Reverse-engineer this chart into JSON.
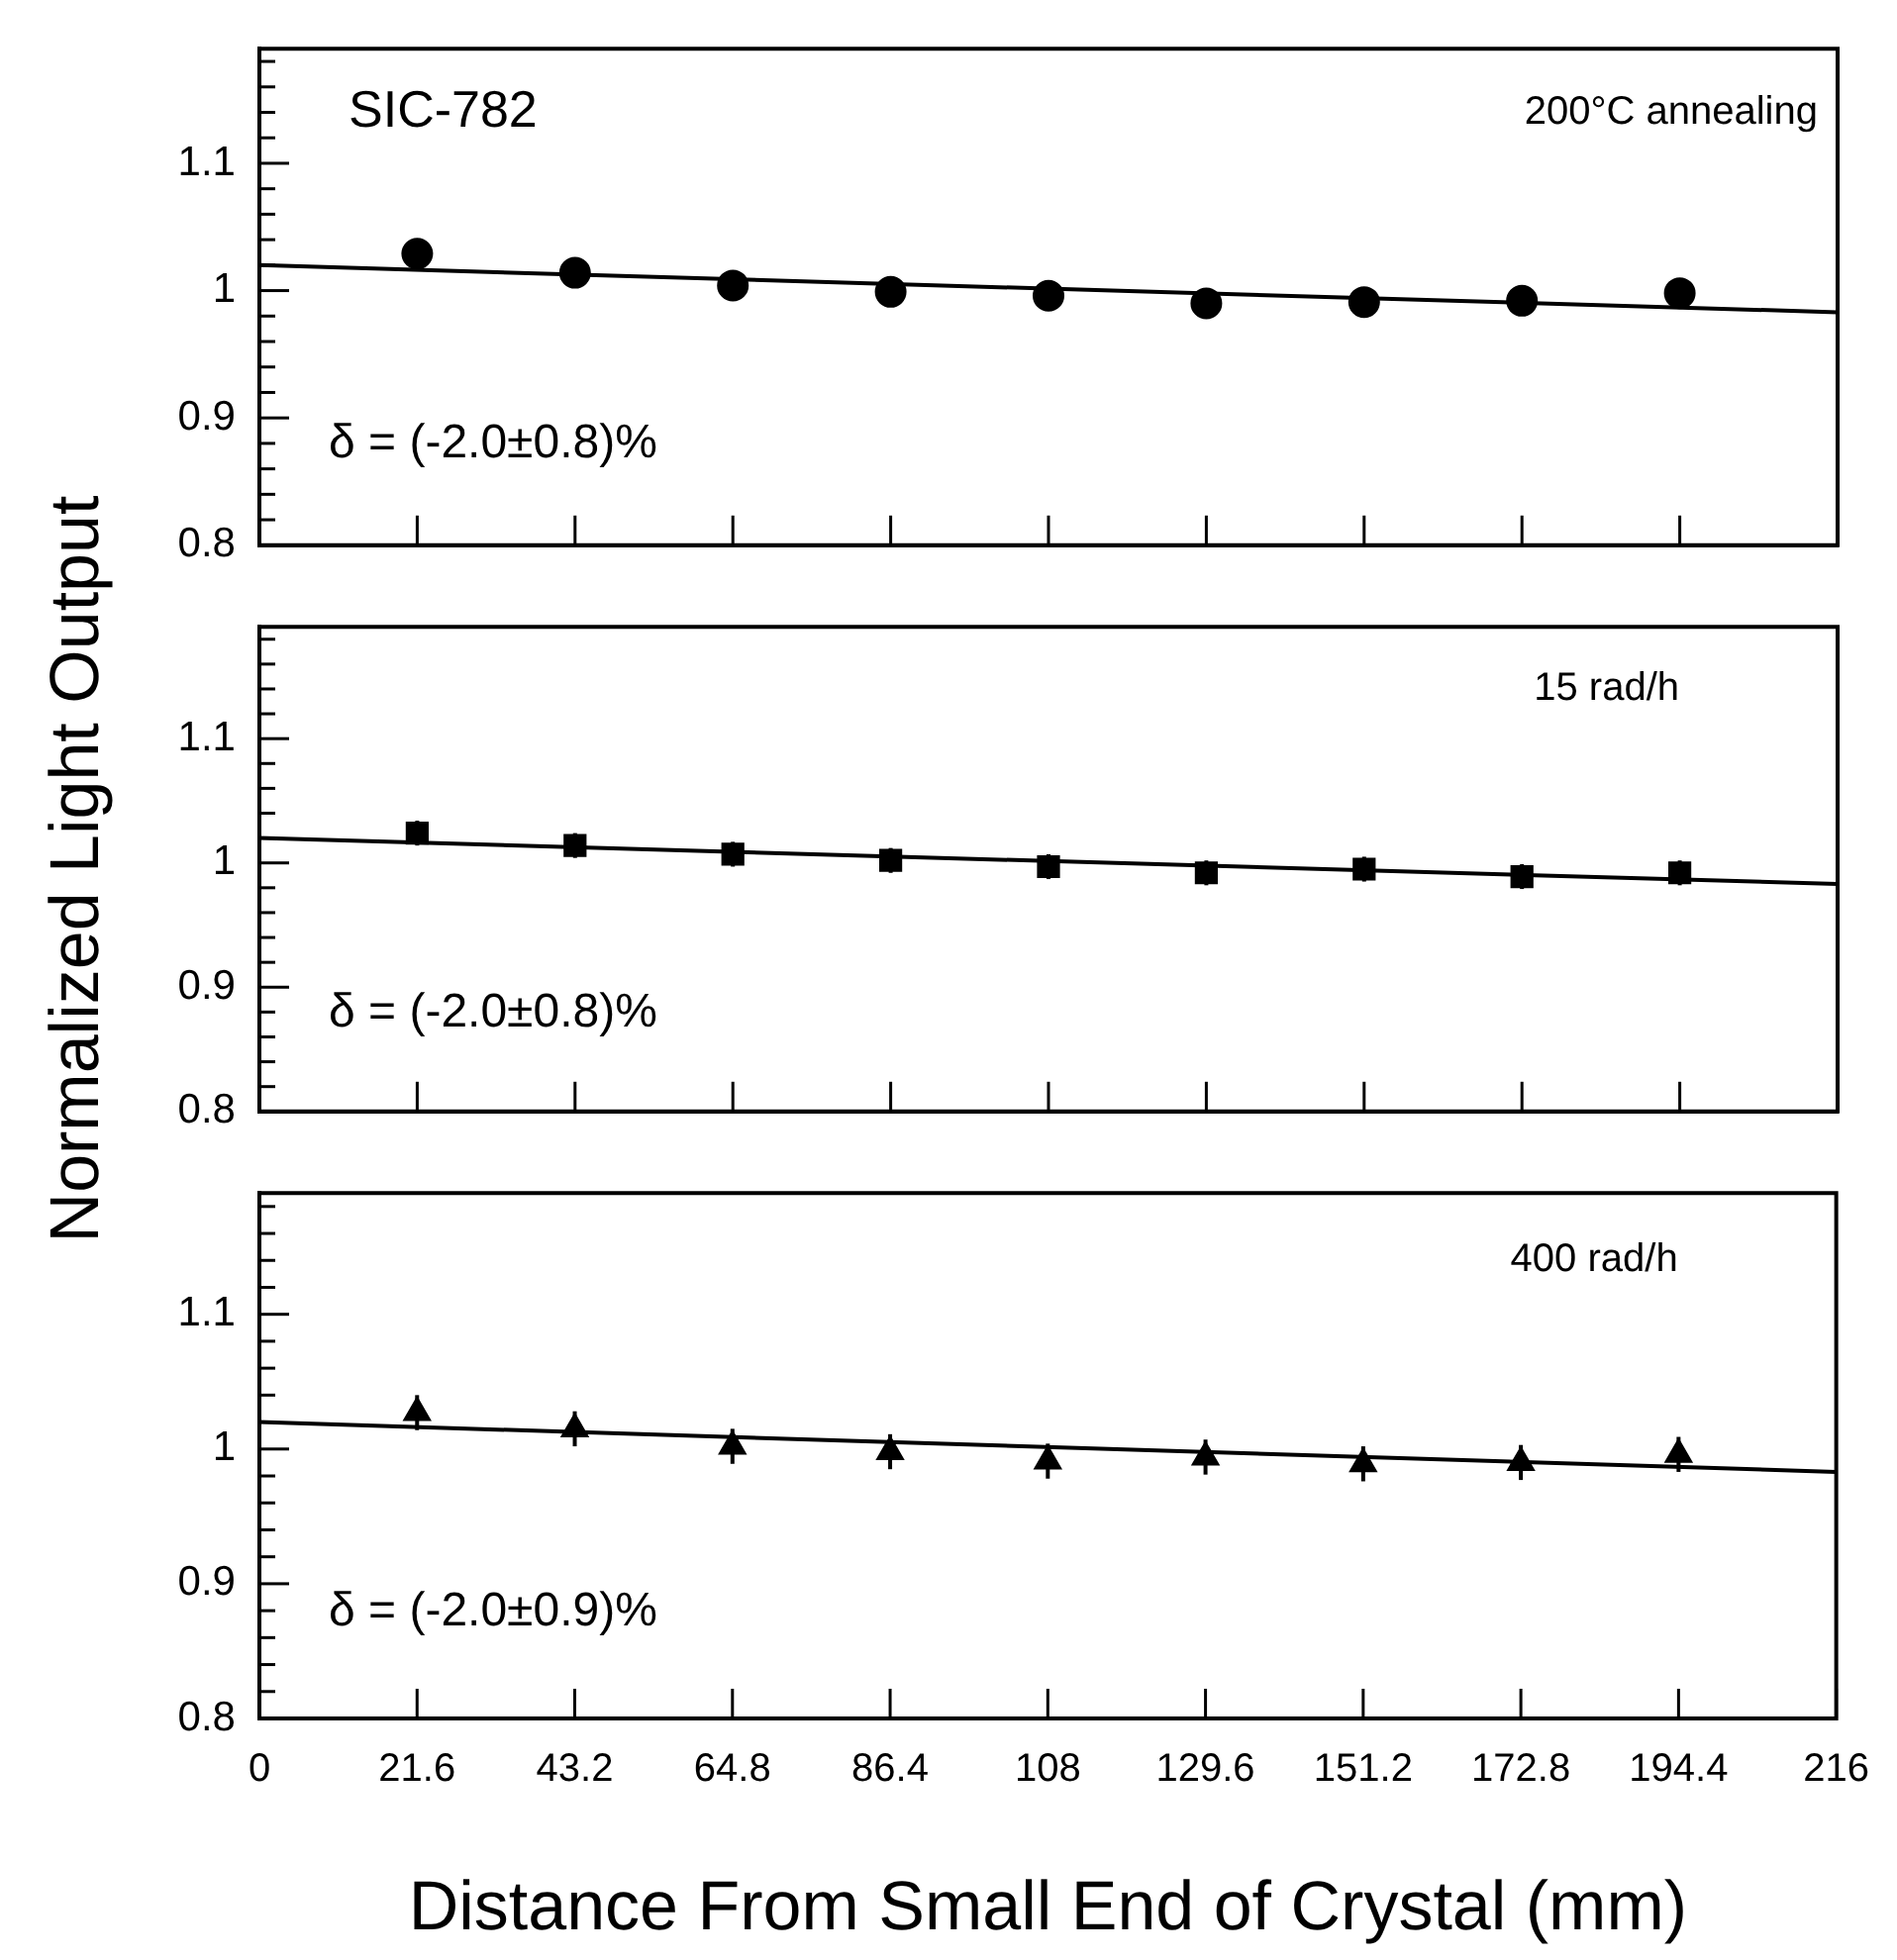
{
  "chart_data": [
    {
      "type": "scatter",
      "marker": "circle",
      "grid": false,
      "tick_labels": "y",
      "xlim": [
        0,
        216
      ],
      "xticks": [
        0,
        21.6,
        43.2,
        64.8,
        86.4,
        108,
        129.6,
        151.2,
        172.8,
        194.4,
        216
      ],
      "ylim": [
        0.8,
        1.19
      ],
      "yticks": [
        0.8,
        {
          "value": 0.82,
          "label": null
        },
        {
          "value": 0.84,
          "label": null
        },
        {
          "value": 0.86,
          "label": null
        },
        {
          "value": 0.88,
          "label": null
        },
        0.9,
        {
          "value": 0.92,
          "label": null
        },
        {
          "value": 0.94,
          "label": null
        },
        {
          "value": 0.96,
          "label": null
        },
        {
          "value": 0.98,
          "label": null
        },
        1,
        {
          "value": 1.02,
          "label": null
        },
        {
          "value": 1.04,
          "label": null
        },
        {
          "value": 1.06,
          "label": null
        },
        {
          "value": 1.08,
          "label": null
        },
        1.1,
        {
          "value": 1.12,
          "label": null
        },
        {
          "value": 1.14,
          "label": null
        },
        {
          "value": 1.16,
          "label": null
        },
        {
          "value": 1.18,
          "label": null
        }
      ],
      "annotations": [
        "SIC-782",
        "200°C annealing",
        "δ = (-2.0±0.8)%"
      ],
      "series": [
        {
          "type": "scatter",
          "color": "#000000",
          "x": [
            21.6,
            43.2,
            64.8,
            86.4,
            108,
            129.6,
            151.2,
            172.8,
            194.4
          ],
          "values": [
            1.029,
            1.014,
            1.004,
            0.999,
            0.996,
            0.99,
            0.991,
            0.992,
            0.998
          ],
          "errors": [
            0.005,
            0.005,
            0.005,
            0.005,
            0.005,
            0.005,
            0.005,
            0.005,
            0.005
          ]
        },
        {
          "type": "line",
          "color": "#000000",
          "marker": "none",
          "x": [
            0,
            216
          ],
          "values": [
            1.02,
            0.983
          ]
        }
      ]
    },
    {
      "type": "scatter",
      "marker": "square",
      "grid": false,
      "tick_labels": "y",
      "ylabel": "Normalized Light Output",
      "xlim": [
        0,
        216
      ],
      "xticks": [
        0,
        21.6,
        43.2,
        64.8,
        86.4,
        108,
        129.6,
        151.2,
        172.8,
        194.4,
        216
      ],
      "ylim": [
        0.8,
        1.19
      ],
      "yticks": [
        0.8,
        {
          "value": 0.82,
          "label": null
        },
        {
          "value": 0.84,
          "label": null
        },
        {
          "value": 0.86,
          "label": null
        },
        {
          "value": 0.88,
          "label": null
        },
        0.9,
        {
          "value": 0.92,
          "label": null
        },
        {
          "value": 0.94,
          "label": null
        },
        {
          "value": 0.96,
          "label": null
        },
        {
          "value": 0.98,
          "label": null
        },
        1,
        {
          "value": 1.02,
          "label": null
        },
        {
          "value": 1.04,
          "label": null
        },
        {
          "value": 1.06,
          "label": null
        },
        {
          "value": 1.08,
          "label": null
        },
        1.1,
        {
          "value": 1.12,
          "label": null
        },
        {
          "value": 1.14,
          "label": null
        },
        {
          "value": 1.16,
          "label": null
        },
        {
          "value": 1.18,
          "label": null
        }
      ],
      "annotations": [
        "15 rad/h",
        "δ = (-2.0±0.8)%"
      ],
      "series": [
        {
          "type": "scatter",
          "color": "#000000",
          "x": [
            21.6,
            43.2,
            64.8,
            86.4,
            108,
            129.6,
            151.2,
            172.8,
            194.4
          ],
          "values": [
            1.024,
            1.014,
            1.007,
            1.002,
            0.997,
            0.992,
            0.995,
            0.989,
            0.992
          ],
          "errors": [
            0.01,
            0.01,
            0.01,
            0.01,
            0.01,
            0.01,
            0.01,
            0.01,
            0.01
          ]
        },
        {
          "type": "line",
          "color": "#000000",
          "marker": "none",
          "x": [
            0,
            216
          ],
          "values": [
            1.02,
            0.983
          ]
        }
      ]
    },
    {
      "type": "scatter",
      "marker": "triangle",
      "grid": false,
      "xlabel": "Distance From Small End of Crystal (mm)",
      "xlim": [
        0,
        216
      ],
      "xticks": [
        0,
        21.6,
        43.2,
        64.8,
        86.4,
        108,
        129.6,
        151.2,
        172.8,
        194.4,
        216
      ],
      "ylim": [
        0.8,
        1.19
      ],
      "yticks": [
        0.8,
        {
          "value": 0.82,
          "label": null
        },
        {
          "value": 0.84,
          "label": null
        },
        {
          "value": 0.86,
          "label": null
        },
        {
          "value": 0.88,
          "label": null
        },
        0.9,
        {
          "value": 0.92,
          "label": null
        },
        {
          "value": 0.94,
          "label": null
        },
        {
          "value": 0.96,
          "label": null
        },
        {
          "value": 0.98,
          "label": null
        },
        1,
        {
          "value": 1.02,
          "label": null
        },
        {
          "value": 1.04,
          "label": null
        },
        {
          "value": 1.06,
          "label": null
        },
        {
          "value": 1.08,
          "label": null
        },
        1.1,
        {
          "value": 1.12,
          "label": null
        },
        {
          "value": 1.14,
          "label": null
        },
        {
          "value": 1.16,
          "label": null
        },
        {
          "value": 1.18,
          "label": null
        }
      ],
      "annotations": [
        "400 rad/h",
        "δ = (-2.0±0.9)%"
      ],
      "series": [
        {
          "type": "scatter",
          "color": "#000000",
          "x": [
            21.6,
            43.2,
            64.8,
            86.4,
            108,
            129.6,
            151.2,
            172.8,
            194.4
          ],
          "values": [
            1.027,
            1.015,
            1.002,
            0.998,
            0.991,
            0.994,
            0.989,
            0.99,
            0.996
          ],
          "errors": [
            0.013,
            0.013,
            0.013,
            0.013,
            0.013,
            0.013,
            0.013,
            0.013,
            0.013
          ]
        },
        {
          "type": "line",
          "color": "#000000",
          "marker": "none",
          "x": [
            0,
            216
          ],
          "values": [
            1.02,
            0.983
          ]
        }
      ]
    }
  ]
}
